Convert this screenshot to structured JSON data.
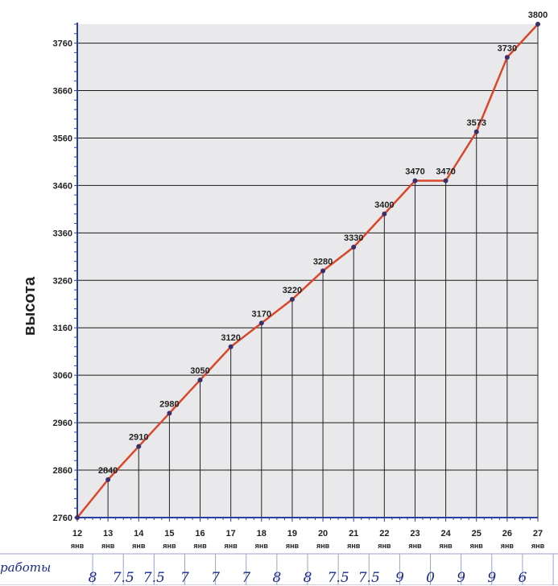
{
  "chart_data": {
    "type": "line",
    "ylabel": "высота",
    "xlabel": "",
    "ylim": [
      2760,
      3800
    ],
    "yticks": [
      2760,
      2860,
      2960,
      3060,
      3160,
      3260,
      3360,
      3460,
      3560,
      3660,
      3760
    ],
    "month_label": "янв",
    "categories": [
      "12",
      "13",
      "14",
      "15",
      "16",
      "17",
      "18",
      "19",
      "20",
      "21",
      "22",
      "23",
      "24",
      "25",
      "26",
      "27"
    ],
    "values": [
      2760,
      2840,
      2910,
      2980,
      3050,
      3120,
      3170,
      3220,
      3280,
      3330,
      3400,
      3470,
      3470,
      3573,
      3730,
      3800
    ],
    "point_labels": [
      "",
      "2840",
      "2910",
      "2980",
      "3050",
      "3120",
      "3170",
      "3220",
      "3280",
      "3330",
      "3400",
      "3470",
      "3470",
      "3573",
      "3730",
      "3800"
    ],
    "line_color": "#d9472b",
    "grid_color": "#1a1a1a",
    "grid": true
  },
  "table": {
    "row_label": "работы",
    "hours": [
      "8",
      "7.5",
      "7.5",
      "7",
      "7",
      "7",
      "8",
      "8",
      "7.5",
      "7.5",
      "9",
      "0",
      "9",
      "9",
      "6"
    ]
  }
}
